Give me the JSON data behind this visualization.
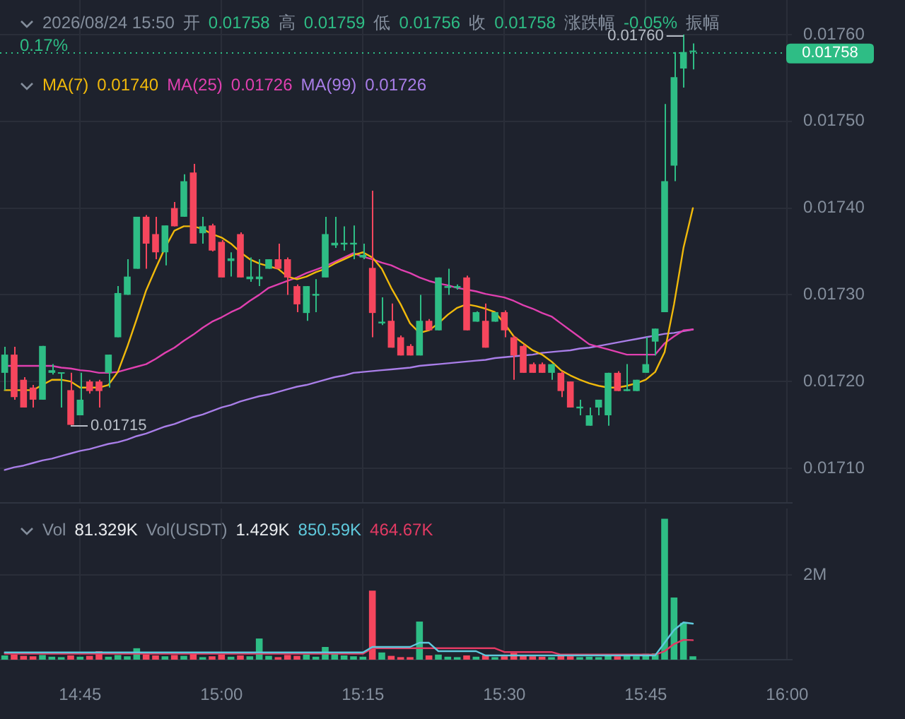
{
  "chart_data": [
    {
      "type": "candlestick",
      "title": "2026/08/24 15:50",
      "annotations": [
        "开 0.01758",
        "高 0.01759",
        "低 0.01756",
        "收 0.01758",
        "涨跌幅 -0.05%",
        "振幅 0.17%",
        "0.01740",
        "0.01726",
        "0.01726"
      ],
      "ohlc": [
        [
          0.01721,
          0.01724,
          0.01719,
          0.017231
        ],
        [
          0.017231,
          0.01724,
          0.017179,
          0.017182
        ],
        [
          0.017202,
          0.017205,
          0.01717,
          0.01717
        ],
        [
          0.017193,
          0.017196,
          0.01717,
          0.017179
        ],
        [
          0.017179,
          0.017241,
          0.017179,
          0.017241
        ],
        [
          0.01721,
          0.01722,
          0.017208,
          0.017213
        ],
        [
          0.017209,
          0.01721,
          0.01717,
          0.01721
        ],
        [
          0.01719,
          0.01721,
          0.01715,
          0.01715
        ],
        [
          0.017161,
          0.01721,
          0.017161,
          0.017179
        ],
        [
          0.0172,
          0.017202,
          0.017186,
          0.017189
        ],
        [
          0.0172,
          0.017202,
          0.01717,
          0.017189
        ],
        [
          0.01721,
          0.017231,
          0.017193,
          0.017231
        ],
        [
          0.017251,
          0.01731,
          0.017251,
          0.017302
        ],
        [
          0.0173,
          0.017341,
          0.0173,
          0.017321
        ],
        [
          0.01733,
          0.01739,
          0.01733,
          0.01739
        ],
        [
          0.01739,
          0.017392,
          0.01733,
          0.017359
        ],
        [
          0.01737,
          0.01739,
          0.017341,
          0.017349
        ],
        [
          0.017349,
          0.01738,
          0.017334,
          0.01738
        ],
        [
          0.0174,
          0.017407,
          0.017379,
          0.017379
        ],
        [
          0.01739,
          0.017439,
          0.01739,
          0.017431
        ],
        [
          0.017441,
          0.017451,
          0.017359,
          0.017359
        ],
        [
          0.017371,
          0.01739,
          0.017359,
          0.017379
        ],
        [
          0.01738,
          0.017382,
          0.01735,
          0.017351
        ],
        [
          0.017361,
          0.017363,
          0.01732,
          0.01732
        ],
        [
          0.017339,
          0.017349,
          0.017321,
          0.017342
        ],
        [
          0.01737,
          0.017372,
          0.01732,
          0.01732
        ],
        [
          0.017318,
          0.017343,
          0.017315,
          0.017321
        ],
        [
          0.017318,
          0.017341,
          0.01731,
          0.017321
        ],
        [
          0.01733,
          0.017341,
          0.01733,
          0.017341
        ],
        [
          0.017341,
          0.017359,
          0.01733,
          0.01733
        ],
        [
          0.017341,
          0.017343,
          0.0173,
          0.01732
        ],
        [
          0.01731,
          0.017312,
          0.01728,
          0.017289
        ],
        [
          0.017279,
          0.01731,
          0.01727,
          0.01731
        ],
        [
          0.017299,
          0.017318,
          0.01728,
          0.017301
        ],
        [
          0.01732,
          0.01739,
          0.01732,
          0.01737
        ],
        [
          0.017357,
          0.01739,
          0.017354,
          0.01736
        ],
        [
          0.017358,
          0.017379,
          0.017351,
          0.01736
        ],
        [
          0.017358,
          0.01738,
          0.017341,
          0.01736
        ],
        [
          0.017343,
          0.017359,
          0.017341,
          0.017346
        ],
        [
          0.017331,
          0.01742,
          0.017251,
          0.017279
        ],
        [
          0.017267,
          0.017297,
          0.017265,
          0.017269
        ],
        [
          0.01727,
          0.01729,
          0.017239,
          0.017239
        ],
        [
          0.017251,
          0.017253,
          0.01723,
          0.01723
        ],
        [
          0.017241,
          0.017243,
          0.01723,
          0.01723
        ],
        [
          0.01723,
          0.0173,
          0.01723,
          0.01727
        ],
        [
          0.01727,
          0.017272,
          0.017259,
          0.017259
        ],
        [
          0.017259,
          0.01732,
          0.017259,
          0.01732
        ],
        [
          0.017308,
          0.01733,
          0.0173,
          0.01731
        ],
        [
          0.017308,
          0.017312,
          0.017306,
          0.01731
        ],
        [
          0.01732,
          0.017322,
          0.017259,
          0.017259
        ],
        [
          0.017269,
          0.017281,
          0.017269,
          0.01728
        ],
        [
          0.01727,
          0.01729,
          0.017239,
          0.017239
        ],
        [
          0.017269,
          0.01728,
          0.017269,
          0.01728
        ],
        [
          0.01728,
          0.017282,
          0.017251,
          0.017259
        ],
        [
          0.017251,
          0.017253,
          0.017202,
          0.01723
        ],
        [
          0.017241,
          0.017243,
          0.01721,
          0.01721
        ],
        [
          0.01722,
          0.017222,
          0.01721,
          0.01721
        ],
        [
          0.01722,
          0.017222,
          0.01721,
          0.01721
        ],
        [
          0.01721,
          0.01722,
          0.017202,
          0.01722
        ],
        [
          0.01721,
          0.017212,
          0.017182,
          0.017189
        ],
        [
          0.0172,
          0.0172,
          0.01717,
          0.01717
        ],
        [
          0.017169,
          0.017179,
          0.017161,
          0.017171
        ],
        [
          0.017149,
          0.01717,
          0.017149,
          0.017161
        ],
        [
          0.01717,
          0.017179,
          0.017161,
          0.017179
        ],
        [
          0.017161,
          0.01721,
          0.017149,
          0.01721
        ],
        [
          0.01721,
          0.017212,
          0.017189,
          0.017189
        ],
        [
          0.017189,
          0.01722,
          0.017189,
          0.017191
        ],
        [
          0.017189,
          0.017202,
          0.017189,
          0.017202
        ],
        [
          0.01721,
          0.017251,
          0.01721,
          0.01722
        ],
        [
          0.017246,
          0.017261,
          0.01723,
          0.017261
        ],
        [
          0.01728,
          0.01752,
          0.01728,
          0.017431
        ],
        [
          0.017449,
          0.01758,
          0.017431,
          0.017551
        ],
        [
          0.017561,
          0.0176,
          0.017539,
          0.01758
        ],
        [
          0.01758,
          0.01759,
          0.01756,
          0.01758
        ],
        null,
        null,
        null,
        null,
        null,
        null,
        null,
        null,
        null,
        null
      ],
      "value_labels": [
        null,
        null,
        null,
        null,
        null,
        null,
        null,
        "0.01715",
        null,
        null,
        null,
        null,
        null,
        null,
        null,
        null,
        null,
        null,
        null,
        null,
        null,
        null,
        null,
        null,
        null,
        null,
        null,
        null,
        null,
        null,
        null,
        null,
        null,
        null,
        null,
        null,
        null,
        null,
        null,
        null,
        null,
        null,
        null,
        null,
        null,
        null,
        null,
        null,
        null,
        null,
        null,
        null,
        null,
        null,
        null,
        null,
        null,
        null,
        null,
        null,
        null,
        null,
        null,
        null,
        null,
        null,
        null,
        null,
        null,
        null,
        null,
        null,
        "0.01760",
        null,
        null,
        null,
        null,
        null,
        null,
        null,
        null,
        null,
        null,
        null
      ],
      "colors": [
        "#2ebd85",
        "#f6465d",
        "#f6465d",
        "#f6465d",
        "#2ebd85",
        "#2ebd85",
        "#2ebd85",
        "#f6465d",
        "#2ebd85",
        "#f6465d",
        "#f6465d",
        "#2ebd85",
        "#2ebd85",
        "#2ebd85",
        "#2ebd85",
        "#f6465d",
        "#f6465d",
        "#2ebd85",
        "#f6465d",
        "#2ebd85",
        "#f6465d",
        "#2ebd85",
        "#f6465d",
        "#f6465d",
        "#2ebd85",
        "#f6465d",
        "#2ebd85",
        "#2ebd85",
        "#2ebd85",
        "#f6465d",
        "#f6465d",
        "#f6465d",
        "#2ebd85",
        "#2ebd85",
        "#2ebd85",
        "#2ebd85",
        "#2ebd85",
        "#2ebd85",
        "#2ebd85",
        "#f6465d",
        "#2ebd85",
        "#f6465d",
        "#f6465d",
        "#f6465d",
        "#2ebd85",
        "#f6465d",
        "#2ebd85",
        "#2ebd85",
        "#2ebd85",
        "#f6465d",
        "#2ebd85",
        "#f6465d",
        "#2ebd85",
        "#f6465d",
        "#f6465d",
        "#f6465d",
        "#f6465d",
        "#f6465d",
        "#2ebd85",
        "#f6465d",
        "#f6465d",
        "#2ebd85",
        "#2ebd85",
        "#2ebd85",
        "#2ebd85",
        "#f6465d",
        "#2ebd85",
        "#2ebd85",
        "#2ebd85",
        "#2ebd85",
        "#2ebd85",
        "#2ebd85",
        "#2ebd85",
        "#2ebd85",
        null,
        null,
        null,
        null,
        null,
        null,
        null,
        null,
        null,
        null
      ],
      "series": [
        {
          "type": "line",
          "name": "MA(7)",
          "color": "#f0b90b",
          "values": [
            0.01719,
            0.01719,
            0.01719,
            0.01719,
            0.017196,
            0.017202,
            0.017202,
            0.0172,
            0.017193,
            0.017193,
            0.017193,
            0.017196,
            0.017211,
            0.01724,
            0.017272,
            0.017305,
            0.01733,
            0.017354,
            0.017374,
            0.017379,
            0.017379,
            0.017376,
            0.01737,
            0.017366,
            0.017359,
            0.017349,
            0.017341,
            0.017336,
            0.017333,
            0.01733,
            0.017321,
            0.017318,
            0.017321,
            0.017326,
            0.01733,
            0.017336,
            0.017341,
            0.017346,
            0.017349,
            0.017343,
            0.01733,
            0.017308,
            0.017289,
            0.017267,
            0.017256,
            0.017259,
            0.017267,
            0.017277,
            0.017285,
            0.017289,
            0.017287,
            0.017284,
            0.01728,
            0.017267,
            0.017252,
            0.017244,
            0.017236,
            0.017231,
            0.017223,
            0.017213,
            0.017207,
            0.017202,
            0.017198,
            0.017195,
            0.017193,
            0.017193,
            0.017195,
            0.017198,
            0.017202,
            0.017211,
            0.017234,
            0.017289,
            0.017354,
            0.0174,
            null,
            null,
            null,
            null,
            null,
            null,
            null,
            null,
            null,
            null
          ]
        },
        {
          "type": "line",
          "name": "MA(25)",
          "color": "#e040b0",
          "values": [
            0.017218,
            0.017218,
            0.017218,
            0.017218,
            0.017218,
            0.017218,
            0.017216,
            0.017215,
            0.017213,
            0.017212,
            0.01721,
            0.01721,
            0.017211,
            0.017214,
            0.017217,
            0.01722,
            0.017226,
            0.017233,
            0.017239,
            0.017247,
            0.017254,
            0.017262,
            0.017269,
            0.017274,
            0.01728,
            0.017285,
            0.017293,
            0.0173,
            0.017308,
            0.017312,
            0.017316,
            0.01732,
            0.017325,
            0.017329,
            0.017333,
            0.017338,
            0.017343,
            0.017348,
            0.017344,
            0.017341,
            0.017337,
            0.017334,
            0.017329,
            0.017325,
            0.01732,
            0.017316,
            0.017313,
            0.017311,
            0.017308,
            0.017306,
            0.017304,
            0.017301,
            0.017299,
            0.017297,
            0.017293,
            0.017288,
            0.017284,
            0.017279,
            0.017275,
            0.017267,
            0.017259,
            0.017251,
            0.017243,
            0.01724,
            0.017237,
            0.017234,
            0.017231,
            0.017231,
            0.017231,
            0.017231,
            0.017244,
            0.017252,
            0.017259,
            0.01726,
            null,
            null,
            null,
            null,
            null,
            null,
            null,
            null,
            null,
            null
          ]
        },
        {
          "type": "line",
          "name": "MA(99)",
          "color": "#a97ee8",
          "values": [
            0.017098,
            0.017101,
            0.017103,
            0.017106,
            0.017109,
            0.017111,
            0.017114,
            0.017117,
            0.01712,
            0.017122,
            0.017125,
            0.017128,
            0.01713,
            0.017133,
            0.017137,
            0.01714,
            0.017144,
            0.017148,
            0.017151,
            0.017155,
            0.017159,
            0.017162,
            0.017166,
            0.01717,
            0.017173,
            0.017177,
            0.01718,
            0.017183,
            0.017185,
            0.017188,
            0.017191,
            0.017194,
            0.017196,
            0.017199,
            0.017202,
            0.017205,
            0.017207,
            0.01721,
            0.017211,
            0.017212,
            0.017213,
            0.017214,
            0.017215,
            0.017216,
            0.017218,
            0.017219,
            0.01722,
            0.017221,
            0.017222,
            0.017223,
            0.017224,
            0.017225,
            0.017227,
            0.017228,
            0.017229,
            0.01723,
            0.017231,
            0.017233,
            0.017234,
            0.017235,
            0.017236,
            0.017238,
            0.017239,
            0.017241,
            0.017243,
            0.017245,
            0.017247,
            0.017249,
            0.017251,
            0.017253,
            0.017255,
            0.017256,
            0.017258,
            0.01726,
            null,
            null,
            null,
            null,
            null,
            null,
            null,
            null,
            null,
            null
          ]
        }
      ],
      "ylim": [
        0.01706,
        0.01764
      ],
      "yticks": [
        {
          "value": 0.0171,
          "label": "0.01710"
        },
        {
          "value": 0.0172,
          "label": "0.01720"
        },
        {
          "value": 0.0173,
          "label": "0.01730"
        },
        {
          "value": 0.0174,
          "label": "0.01740"
        },
        {
          "value": 0.0175,
          "label": "0.01750"
        },
        {
          "value": 0.0176,
          "label": "0.01760"
        }
      ],
      "grid": true,
      "legend": "top",
      "tick_labels": "y",
      "ref_lines": [
        {
          "axis": "y",
          "value": 0.01758,
          "label": "0.01758",
          "color": "#2ebd85",
          "line_style": "dotted"
        }
      ]
    },
    {
      "type": "bar",
      "annotations": [
        "Vol 81.329K",
        "Vol(USDT) 1.429K",
        "850.59K",
        "464.67K"
      ],
      "categories": [
        null,
        null,
        null,
        null,
        null,
        null,
        null,
        null,
        "14:45",
        null,
        null,
        null,
        null,
        null,
        null,
        null,
        null,
        null,
        null,
        null,
        null,
        null,
        null,
        "15:00",
        null,
        null,
        null,
        null,
        null,
        null,
        null,
        null,
        null,
        null,
        null,
        null,
        null,
        null,
        "15:15",
        null,
        null,
        null,
        null,
        null,
        null,
        null,
        null,
        null,
        null,
        null,
        null,
        null,
        null,
        "15:30",
        null,
        null,
        null,
        null,
        null,
        null,
        null,
        null,
        null,
        null,
        null,
        null,
        null,
        null,
        "15:45",
        null,
        null,
        null,
        null,
        null,
        null,
        null,
        null,
        null,
        null,
        null,
        null,
        null,
        null,
        "16:00"
      ],
      "series": [
        {
          "type": "bar",
          "colors": [
            "#2ebd85",
            "#f6465d",
            "#f6465d",
            "#f6465d",
            "#2ebd85",
            "#2ebd85",
            "#2ebd85",
            "#f6465d",
            "#2ebd85",
            "#f6465d",
            "#f6465d",
            "#2ebd85",
            "#2ebd85",
            "#2ebd85",
            "#2ebd85",
            "#f6465d",
            "#f6465d",
            "#2ebd85",
            "#f6465d",
            "#2ebd85",
            "#f6465d",
            "#2ebd85",
            "#f6465d",
            "#f6465d",
            "#2ebd85",
            "#f6465d",
            "#2ebd85",
            "#2ebd85",
            "#2ebd85",
            "#f6465d",
            "#f6465d",
            "#f6465d",
            "#2ebd85",
            "#2ebd85",
            "#2ebd85",
            "#2ebd85",
            "#2ebd85",
            "#2ebd85",
            "#2ebd85",
            "#f6465d",
            "#2ebd85",
            "#f6465d",
            "#f6465d",
            "#f6465d",
            "#2ebd85",
            "#f6465d",
            "#2ebd85",
            "#2ebd85",
            "#2ebd85",
            "#f6465d",
            "#2ebd85",
            "#f6465d",
            "#2ebd85",
            "#f6465d",
            "#f6465d",
            "#f6465d",
            "#f6465d",
            "#f6465d",
            "#2ebd85",
            "#f6465d",
            "#f6465d",
            "#2ebd85",
            "#2ebd85",
            "#2ebd85",
            "#2ebd85",
            "#f6465d",
            "#2ebd85",
            "#2ebd85",
            "#2ebd85",
            "#2ebd85",
            "#2ebd85",
            "#2ebd85",
            "#2ebd85",
            "#2ebd85",
            null,
            null,
            null,
            null,
            null,
            null,
            null,
            null,
            null,
            null
          ],
          "values": [
            100000,
            120000,
            90000,
            80000,
            110000,
            70000,
            60000,
            100000,
            70000,
            90000,
            200000,
            70000,
            110000,
            80000,
            270000,
            120000,
            100000,
            80000,
            110000,
            90000,
            150000,
            60000,
            80000,
            120000,
            70000,
            100000,
            80000,
            500000,
            90000,
            60000,
            110000,
            90000,
            120000,
            70000,
            300000,
            150000,
            100000,
            80000,
            70000,
            1630000,
            170000,
            90000,
            60000,
            60000,
            900000,
            100000,
            120000,
            70000,
            60000,
            100000,
            70000,
            110000,
            60000,
            80000,
            160000,
            100000,
            80000,
            70000,
            60000,
            90000,
            80000,
            60000,
            70000,
            60000,
            130000,
            80000,
            130000,
            80000,
            140000,
            150000,
            3330000,
            1470000,
            870000,
            80000,
            null,
            null,
            null,
            null,
            null,
            null,
            null,
            null,
            null,
            null
          ]
        },
        {
          "type": "line",
          "color": "#5fc9dc",
          "values": [
            170000,
            170000,
            170000,
            170000,
            170000,
            170000,
            170000,
            170000,
            170000,
            170000,
            170000,
            170000,
            170000,
            170000,
            170000,
            170000,
            170000,
            170000,
            170000,
            170000,
            170000,
            170000,
            170000,
            170000,
            170000,
            170000,
            170000,
            170000,
            170000,
            170000,
            170000,
            170000,
            170000,
            170000,
            170000,
            170000,
            170000,
            170000,
            170000,
            300000,
            300000,
            300000,
            300000,
            300000,
            400000,
            400000,
            200000,
            200000,
            200000,
            200000,
            200000,
            100000,
            100000,
            100000,
            100000,
            100000,
            100000,
            100000,
            100000,
            100000,
            100000,
            100000,
            100000,
            100000,
            100000,
            100000,
            100000,
            100000,
            100000,
            100000,
            400000,
            700000,
            880000,
            850000,
            null,
            null,
            null,
            null,
            null,
            null,
            null,
            null,
            null,
            null
          ]
        },
        {
          "type": "line",
          "color": "#e23a63",
          "values": [
            140000,
            140000,
            140000,
            140000,
            140000,
            140000,
            140000,
            140000,
            140000,
            140000,
            140000,
            140000,
            140000,
            140000,
            140000,
            140000,
            140000,
            140000,
            140000,
            140000,
            140000,
            140000,
            140000,
            140000,
            140000,
            140000,
            140000,
            140000,
            140000,
            140000,
            140000,
            140000,
            140000,
            140000,
            140000,
            140000,
            140000,
            140000,
            140000,
            270000,
            270000,
            270000,
            270000,
            270000,
            270000,
            270000,
            270000,
            270000,
            270000,
            270000,
            270000,
            270000,
            270000,
            180000,
            180000,
            180000,
            180000,
            180000,
            180000,
            120000,
            120000,
            120000,
            120000,
            120000,
            120000,
            120000,
            120000,
            120000,
            120000,
            120000,
            200000,
            370000,
            470000,
            460000,
            null,
            null,
            null,
            null,
            null,
            null,
            null,
            null,
            null,
            null
          ]
        }
      ],
      "ylim": [
        0,
        3570000
      ],
      "yticks": [
        {
          "value": 2000000,
          "label": "2M"
        }
      ],
      "grid": true
    }
  ]
}
